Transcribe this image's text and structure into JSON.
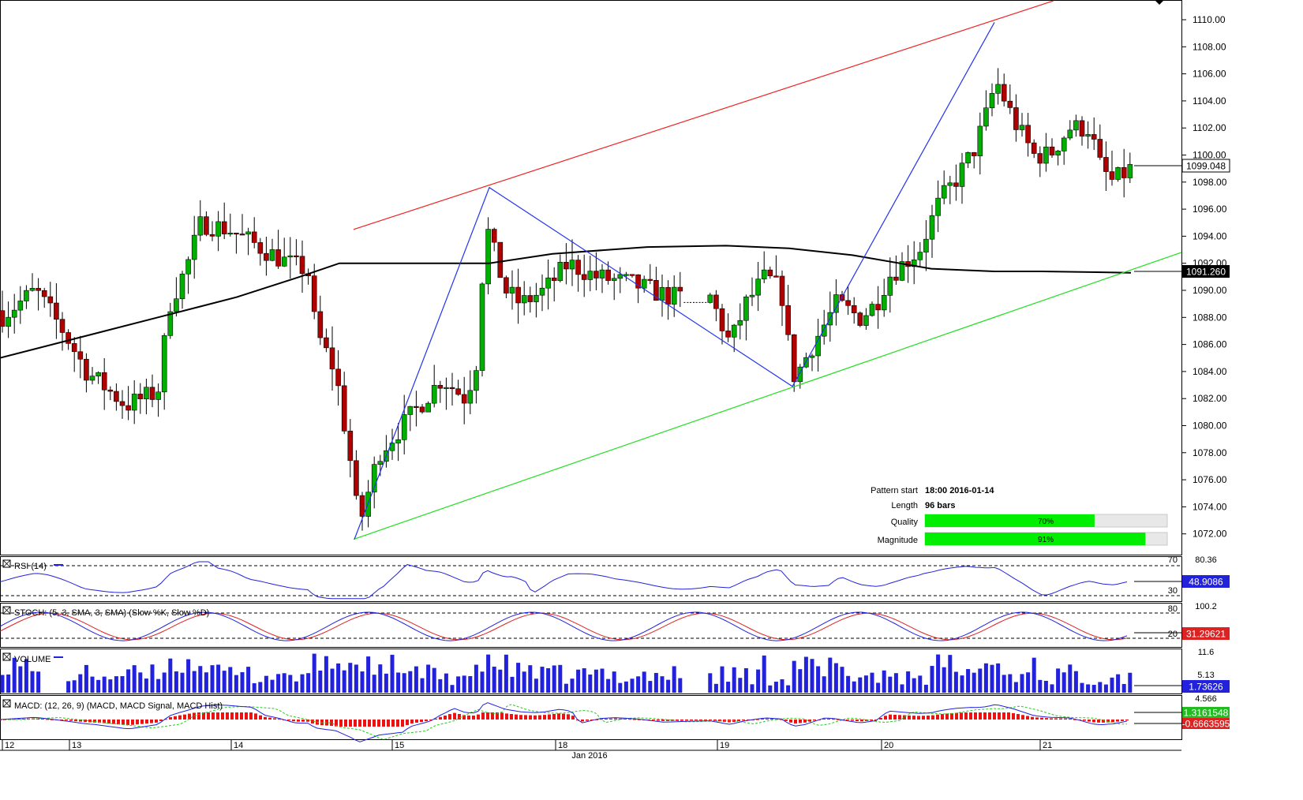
{
  "chart_data": {
    "type": "candlestick",
    "price_axis": {
      "ticks": [
        1072,
        1074,
        1076,
        1078,
        1080,
        1082,
        1084,
        1086,
        1088,
        1090,
        1092,
        1094,
        1096,
        1098,
        1100,
        1102,
        1104,
        1106,
        1108,
        1110
      ],
      "tick_labels": [
        "1072.00",
        "1074.00",
        "1076.00",
        "1078.00",
        "1080.00",
        "1082.00",
        "1084.00",
        "1086.00",
        "1088.00",
        "1090.00",
        "1092.00",
        "1094.00",
        "1096.00",
        "1098.00",
        "1100.00",
        "1102.00",
        "1104.00",
        "1106.00",
        "1108.00",
        "1110.00"
      ],
      "current_price": 1099.048,
      "current_price_label": "1099.048",
      "ma_value": 1091.26,
      "ma_value_label": "1091.260"
    },
    "date_axis": {
      "labels": [
        "12",
        "13",
        "14",
        "15",
        "18",
        "19",
        "20",
        "21"
      ],
      "month_label": "Jan 2016"
    },
    "pattern_info": {
      "start_label": "Pattern start",
      "start_value": "18:00 2016-01-14",
      "length_label": "Length",
      "length_value": "96 bars",
      "quality_label": "Quality",
      "quality_pct": 70,
      "quality_text": "70%",
      "magnitude_label": "Magnitude",
      "magnitude_pct": 91,
      "magnitude_text": "91%"
    },
    "pattern_points": [
      {
        "name": "low",
        "price": 1071.6
      },
      {
        "name": "peak-1",
        "price": 1097.6
      },
      {
        "name": "trough",
        "price": 1082.9
      },
      {
        "name": "peak-2",
        "price": 1109.8
      }
    ],
    "trendlines": {
      "resistance": [
        1094.5,
        1111.4
      ],
      "support": [
        1071.6,
        1092.8
      ]
    },
    "indicators": {
      "rsi": {
        "title": "RSI (14)",
        "level_high": "70",
        "level_low": "30",
        "top_label": "80.36",
        "value": "48.9086"
      },
      "stoch": {
        "title": "STOCH: (5, 3, SMA, 3, SMA) (Slow %K, Slow %D)",
        "level_high": "80",
        "level_low": "20",
        "top_label": "100.2",
        "value": "31.29621"
      },
      "volume": {
        "title": "VOLUME",
        "top_label": "11.6",
        "mid_label": "5.13",
        "value": "1.73626"
      },
      "macd": {
        "title": "MACD: (12, 26, 9) (MACD, MACD Signal, MACD Hist)",
        "top_label": "4.566",
        "value_1": "1.3161548",
        "value_2": "-0.6663595"
      }
    },
    "colors": {
      "up": "#00b000",
      "down": "#b00000",
      "resistance": "#ee2222",
      "support": "#22dd22",
      "pattern": "#2233ee",
      "ma": "#000000",
      "bar_green": "#00ee00"
    }
  }
}
